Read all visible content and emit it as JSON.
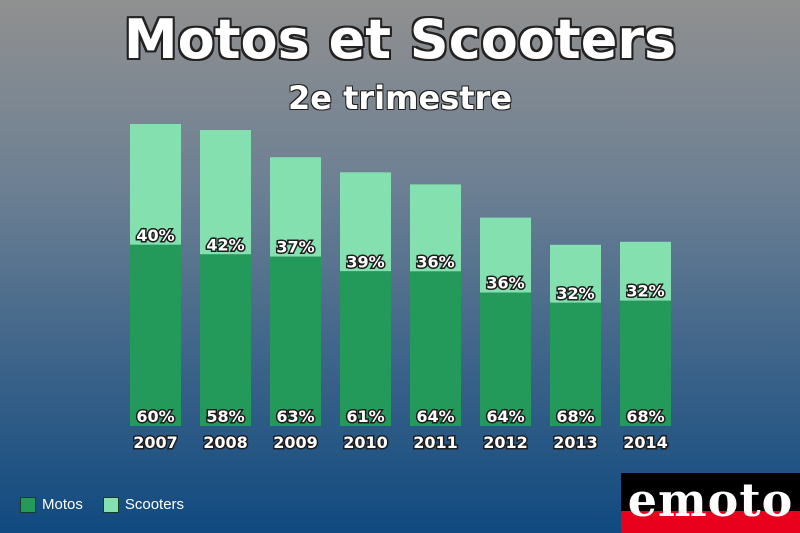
{
  "colors": {
    "motos": "#249a5a",
    "scooters": "#84e0ae"
  },
  "logo": {
    "text": "emoto",
    "colors": [
      "#000000",
      "#e8001c",
      "#ffffff"
    ]
  },
  "chart_data": {
    "type": "bar",
    "stacked": true,
    "title": "Motos et Scooters",
    "subtitle": "2e trimestre",
    "categories": [
      "2007",
      "2008",
      "2009",
      "2010",
      "2011",
      "2012",
      "2013",
      "2014"
    ],
    "series": [
      {
        "name": "Motos",
        "values": [
          60,
          58,
          63,
          61,
          64,
          64,
          68,
          68
        ],
        "labels": [
          "60%",
          "58%",
          "63%",
          "61%",
          "64%",
          "64%",
          "68%",
          "68%"
        ]
      },
      {
        "name": "Scooters",
        "values": [
          40,
          42,
          37,
          39,
          36,
          36,
          32,
          32
        ],
        "labels": [
          "40%",
          "42%",
          "37%",
          "39%",
          "36%",
          "36%",
          "32%",
          "32%"
        ]
      }
    ],
    "relative_totals": [
      100,
      98,
      89,
      84,
      80,
      69,
      60,
      61
    ],
    "grid": false,
    "legend_position": "bottom-left"
  }
}
